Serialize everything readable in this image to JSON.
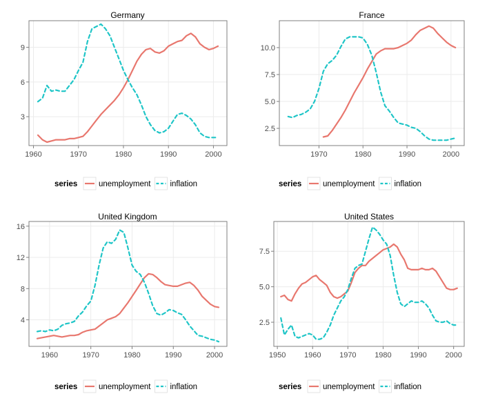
{
  "chart_data": [
    {
      "type": "line",
      "title": "Germany",
      "xlim": [
        1959,
        2003
      ],
      "ylim": [
        0.5,
        11.3
      ],
      "xticks": [
        1960,
        1970,
        1980,
        1990,
        2000
      ],
      "xtick_labels": [
        "1960",
        "1970",
        "1980",
        "1990",
        "2000"
      ],
      "yticks": [
        3,
        6,
        9
      ],
      "ytick_labels": [
        "3",
        "6",
        "9"
      ],
      "legend": {
        "title": "series",
        "position": "bottom"
      },
      "series": [
        {
          "name": "unemployment",
          "color": "#e8776e",
          "dash": "solid",
          "x": [
            1961,
            1962,
            1963,
            1964,
            1965,
            1966,
            1967,
            1968,
            1969,
            1970,
            1971,
            1972,
            1973,
            1974,
            1975,
            1976,
            1977,
            1978,
            1979,
            1980,
            1981,
            1982,
            1983,
            1984,
            1985,
            1986,
            1987,
            1988,
            1989,
            1990,
            1991,
            1992,
            1993,
            1994,
            1995,
            1996,
            1997,
            1998,
            1999,
            2000,
            2001
          ],
          "y": [
            1.4,
            1.0,
            0.8,
            0.9,
            1.0,
            1.0,
            1.0,
            1.1,
            1.1,
            1.2,
            1.3,
            1.7,
            2.2,
            2.7,
            3.2,
            3.6,
            4.0,
            4.4,
            4.9,
            5.5,
            6.2,
            7.0,
            7.8,
            8.4,
            8.8,
            8.9,
            8.6,
            8.5,
            8.7,
            9.1,
            9.3,
            9.5,
            9.6,
            10.0,
            10.2,
            9.9,
            9.3,
            9.0,
            8.8,
            8.9,
            9.1
          ]
        },
        {
          "name": "inflation",
          "color": "#1fc5c7",
          "dash": "dashed",
          "x": [
            1961,
            1962,
            1963,
            1964,
            1965,
            1966,
            1967,
            1968,
            1969,
            1970,
            1971,
            1972,
            1973,
            1974,
            1975,
            1976,
            1977,
            1978,
            1979,
            1980,
            1981,
            1982,
            1983,
            1984,
            1985,
            1986,
            1987,
            1988,
            1989,
            1990,
            1991,
            1992,
            1993,
            1994,
            1995,
            1996,
            1997,
            1998,
            1999,
            2000,
            2001
          ],
          "y": [
            4.3,
            4.6,
            5.7,
            5.2,
            5.3,
            5.2,
            5.2,
            5.7,
            6.2,
            7.0,
            7.7,
            9.5,
            10.6,
            10.8,
            11.0,
            10.6,
            10.0,
            9.0,
            8.0,
            7.0,
            6.2,
            5.5,
            4.9,
            4.0,
            3.0,
            2.3,
            1.8,
            1.6,
            1.7,
            2.0,
            2.6,
            3.2,
            3.3,
            3.1,
            2.8,
            2.3,
            1.6,
            1.3,
            1.2,
            1.2,
            1.2
          ]
        }
      ]
    },
    {
      "type": "line",
      "title": "France",
      "xlim": [
        1961,
        2003
      ],
      "ylim": [
        0.9,
        12.5
      ],
      "xticks": [
        1970,
        1980,
        1990,
        2000
      ],
      "xtick_labels": [
        "1970",
        "1980",
        "1990",
        "2000"
      ],
      "yticks": [
        2.5,
        5,
        7.5,
        10
      ],
      "ytick_labels": [
        "2.5",
        "5.0",
        "7.5",
        "10.0"
      ],
      "legend": {
        "title": "series",
        "position": "bottom"
      },
      "series": [
        {
          "name": "unemployment",
          "color": "#e8776e",
          "dash": "solid",
          "x": [
            1971,
            1972,
            1973,
            1974,
            1975,
            1976,
            1977,
            1978,
            1979,
            1980,
            1981,
            1982,
            1983,
            1984,
            1985,
            1986,
            1987,
            1988,
            1989,
            1990,
            1991,
            1992,
            1993,
            1994,
            1995,
            1996,
            1997,
            1998,
            1999,
            2000,
            2001
          ],
          "y": [
            1.7,
            1.8,
            2.3,
            2.9,
            3.5,
            4.2,
            5.0,
            5.8,
            6.5,
            7.2,
            8.0,
            8.7,
            9.4,
            9.7,
            9.9,
            9.9,
            9.9,
            10.0,
            10.2,
            10.4,
            10.7,
            11.2,
            11.6,
            11.8,
            12.0,
            11.8,
            11.3,
            10.9,
            10.5,
            10.2,
            10.0
          ]
        },
        {
          "name": "inflation",
          "color": "#1fc5c7",
          "dash": "dashed",
          "x": [
            1963,
            1964,
            1965,
            1966,
            1967,
            1968,
            1969,
            1970,
            1971,
            1972,
            1973,
            1974,
            1975,
            1976,
            1977,
            1978,
            1979,
            1980,
            1981,
            1982,
            1983,
            1984,
            1985,
            1986,
            1987,
            1988,
            1989,
            1990,
            1991,
            1992,
            1993,
            1994,
            1995,
            1996,
            1997,
            1998,
            1999,
            2000,
            2001
          ],
          "y": [
            3.6,
            3.5,
            3.7,
            3.8,
            4.0,
            4.3,
            5.0,
            6.2,
            7.8,
            8.5,
            8.8,
            9.3,
            10.1,
            10.8,
            11.0,
            11.0,
            11.0,
            10.9,
            10.3,
            9.3,
            7.7,
            5.9,
            4.6,
            4.1,
            3.5,
            3.0,
            2.9,
            2.8,
            2.6,
            2.5,
            2.2,
            1.8,
            1.5,
            1.4,
            1.4,
            1.4,
            1.4,
            1.5,
            1.6
          ]
        }
      ]
    },
    {
      "type": "line",
      "title": "United Kingdom",
      "xlim": [
        1955,
        2003
      ],
      "ylim": [
        0.6,
        16.6
      ],
      "xticks": [
        1960,
        1970,
        1980,
        1990,
        2000
      ],
      "xtick_labels": [
        "1960",
        "1970",
        "1980",
        "1990",
        "2000"
      ],
      "yticks": [
        4,
        8,
        12,
        16
      ],
      "ytick_labels": [
        "4",
        "8",
        "12",
        "16"
      ],
      "legend": {
        "title": "series",
        "position": "bottom"
      },
      "series": [
        {
          "name": "unemployment",
          "color": "#e8776e",
          "dash": "solid",
          "x": [
            1957,
            1958,
            1959,
            1960,
            1961,
            1962,
            1963,
            1964,
            1965,
            1966,
            1967,
            1968,
            1969,
            1970,
            1971,
            1972,
            1973,
            1974,
            1975,
            1976,
            1977,
            1978,
            1979,
            1980,
            1981,
            1982,
            1983,
            1984,
            1985,
            1986,
            1987,
            1988,
            1989,
            1990,
            1991,
            1992,
            1993,
            1994,
            1995,
            1996,
            1997,
            1998,
            1999,
            2000,
            2001
          ],
          "y": [
            1.6,
            1.7,
            1.8,
            1.9,
            2.0,
            1.9,
            1.8,
            1.9,
            2.0,
            2.0,
            2.1,
            2.4,
            2.6,
            2.7,
            2.8,
            3.2,
            3.6,
            4.0,
            4.2,
            4.4,
            4.8,
            5.5,
            6.2,
            7.0,
            7.8,
            8.6,
            9.4,
            9.9,
            9.8,
            9.4,
            8.9,
            8.5,
            8.4,
            8.3,
            8.3,
            8.5,
            8.7,
            8.8,
            8.4,
            7.8,
            7.0,
            6.5,
            6.0,
            5.7,
            5.6
          ]
        },
        {
          "name": "inflation",
          "color": "#1fc5c7",
          "dash": "dashed",
          "x": [
            1957,
            1958,
            1959,
            1960,
            1961,
            1962,
            1963,
            1964,
            1965,
            1966,
            1967,
            1968,
            1969,
            1970,
            1971,
            1972,
            1973,
            1974,
            1975,
            1976,
            1977,
            1978,
            1979,
            1980,
            1981,
            1982,
            1983,
            1984,
            1985,
            1986,
            1987,
            1988,
            1989,
            1990,
            1991,
            1992,
            1993,
            1994,
            1995,
            1996,
            1997,
            1998,
            1999,
            2000,
            2001
          ],
          "y": [
            2.5,
            2.6,
            2.5,
            2.7,
            2.6,
            2.8,
            3.3,
            3.5,
            3.6,
            3.8,
            4.5,
            5.0,
            5.8,
            6.4,
            8.4,
            11.0,
            13.2,
            14.0,
            13.8,
            14.3,
            15.5,
            15.2,
            13.2,
            11.0,
            10.2,
            9.8,
            8.8,
            7.4,
            5.8,
            4.8,
            4.6,
            4.9,
            5.3,
            5.2,
            4.9,
            4.7,
            4.0,
            3.2,
            2.6,
            2.0,
            1.9,
            1.7,
            1.5,
            1.4,
            1.2
          ]
        }
      ]
    },
    {
      "type": "line",
      "title": "United States",
      "xlim": [
        1949,
        2003
      ],
      "ylim": [
        0.8,
        9.6
      ],
      "xticks": [
        1950,
        1960,
        1970,
        1980,
        1990,
        2000
      ],
      "xtick_labels": [
        "1950",
        "1960",
        "1970",
        "1980",
        "1990",
        "2000"
      ],
      "yticks": [
        2.5,
        5,
        7.5
      ],
      "ytick_labels": [
        "2.5",
        "5.0",
        "7.5"
      ],
      "legend": {
        "title": "series",
        "position": "bottom"
      },
      "series": [
        {
          "name": "unemployment",
          "color": "#e8776e",
          "dash": "solid",
          "x": [
            1951,
            1952,
            1953,
            1954,
            1955,
            1956,
            1957,
            1958,
            1959,
            1960,
            1961,
            1962,
            1963,
            1964,
            1965,
            1966,
            1967,
            1968,
            1969,
            1970,
            1971,
            1972,
            1973,
            1974,
            1975,
            1976,
            1977,
            1978,
            1979,
            1980,
            1981,
            1982,
            1983,
            1984,
            1985,
            1986,
            1987,
            1988,
            1989,
            1990,
            1991,
            1992,
            1993,
            1994,
            1995,
            1996,
            1997,
            1998,
            1999,
            2000,
            2001
          ],
          "y": [
            4.3,
            4.4,
            4.1,
            4.0,
            4.5,
            4.9,
            5.2,
            5.3,
            5.5,
            5.7,
            5.8,
            5.5,
            5.3,
            5.1,
            4.6,
            4.3,
            4.2,
            4.3,
            4.5,
            4.7,
            5.3,
            6.0,
            6.3,
            6.5,
            6.5,
            6.8,
            7.0,
            7.2,
            7.4,
            7.6,
            7.7,
            7.8,
            8.0,
            7.8,
            7.3,
            6.9,
            6.3,
            6.2,
            6.2,
            6.2,
            6.3,
            6.2,
            6.2,
            6.3,
            6.1,
            5.7,
            5.3,
            4.9,
            4.8,
            4.8,
            4.9
          ]
        },
        {
          "name": "inflation",
          "color": "#1fc5c7",
          "dash": "dashed",
          "x": [
            1951,
            1952,
            1953,
            1954,
            1955,
            1956,
            1957,
            1958,
            1959,
            1960,
            1961,
            1962,
            1963,
            1964,
            1965,
            1966,
            1967,
            1968,
            1969,
            1970,
            1971,
            1972,
            1973,
            1974,
            1975,
            1976,
            1977,
            1978,
            1979,
            1980,
            1981,
            1982,
            1983,
            1984,
            1985,
            1986,
            1987,
            1988,
            1989,
            1990,
            1991,
            1992,
            1993,
            1994,
            1995,
            1996,
            1997,
            1998,
            1999,
            2000,
            2001
          ],
          "y": [
            2.8,
            1.6,
            2.0,
            2.3,
            1.5,
            1.4,
            1.5,
            1.6,
            1.7,
            1.6,
            1.3,
            1.3,
            1.4,
            1.8,
            2.3,
            3.0,
            3.5,
            4.0,
            4.3,
            4.8,
            5.6,
            6.3,
            6.5,
            6.6,
            7.5,
            8.4,
            9.2,
            9.0,
            8.7,
            8.3,
            8.0,
            7.2,
            5.8,
            4.6,
            3.8,
            3.6,
            3.8,
            4.0,
            3.9,
            3.9,
            4.0,
            3.8,
            3.5,
            3.0,
            2.6,
            2.5,
            2.5,
            2.6,
            2.4,
            2.3,
            2.3
          ]
        }
      ]
    }
  ]
}
